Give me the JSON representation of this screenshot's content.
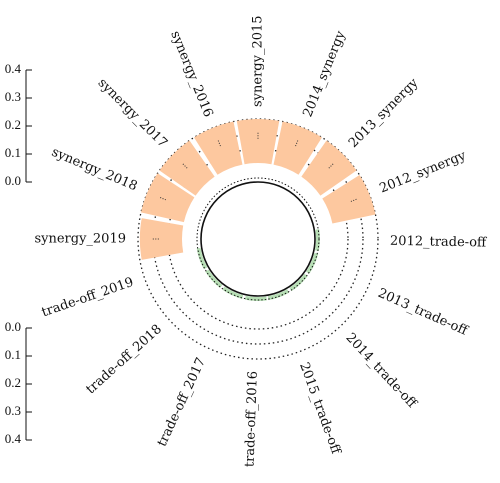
{
  "chart_data": {
    "type": "bar",
    "subtype": "circular-diverging",
    "categories": [
      "synergy_2019",
      "synergy_2018",
      "synergy_2017",
      "synergy_2016",
      "synergy_2015",
      "2014_synergy",
      "2013_synergy",
      "2012_synergy",
      "2012_trade-off",
      "2013_trade-off",
      "2014_trade-off",
      "2015_trade-off",
      "trade-off_2016",
      "trade-off_2017",
      "trade-off_2018",
      "trade-off_2019"
    ],
    "series": [
      {
        "values": [
          0.23,
          0.24,
          0.24,
          0.24,
          0.24,
          0.24,
          0.24,
          0.24,
          0.02,
          0.02,
          0.02,
          0.02,
          0.02,
          0.02,
          0.02,
          0.02
        ],
        "color": "#fdc89f"
      }
    ],
    "upper_axis": {
      "ticks": [
        "0.0",
        "0.1",
        "0.2",
        "0.3",
        "0.4"
      ],
      "ylim": [
        0,
        0.4
      ]
    },
    "lower_axis": {
      "ticks": [
        "0.0",
        "0.1",
        "0.2",
        "0.3",
        "0.4"
      ],
      "ylim": [
        0,
        0.4
      ]
    },
    "grid": true,
    "colors": {
      "synergy_bar": "#fdc89f",
      "trade_off_bar": "#b7dfb5"
    }
  }
}
